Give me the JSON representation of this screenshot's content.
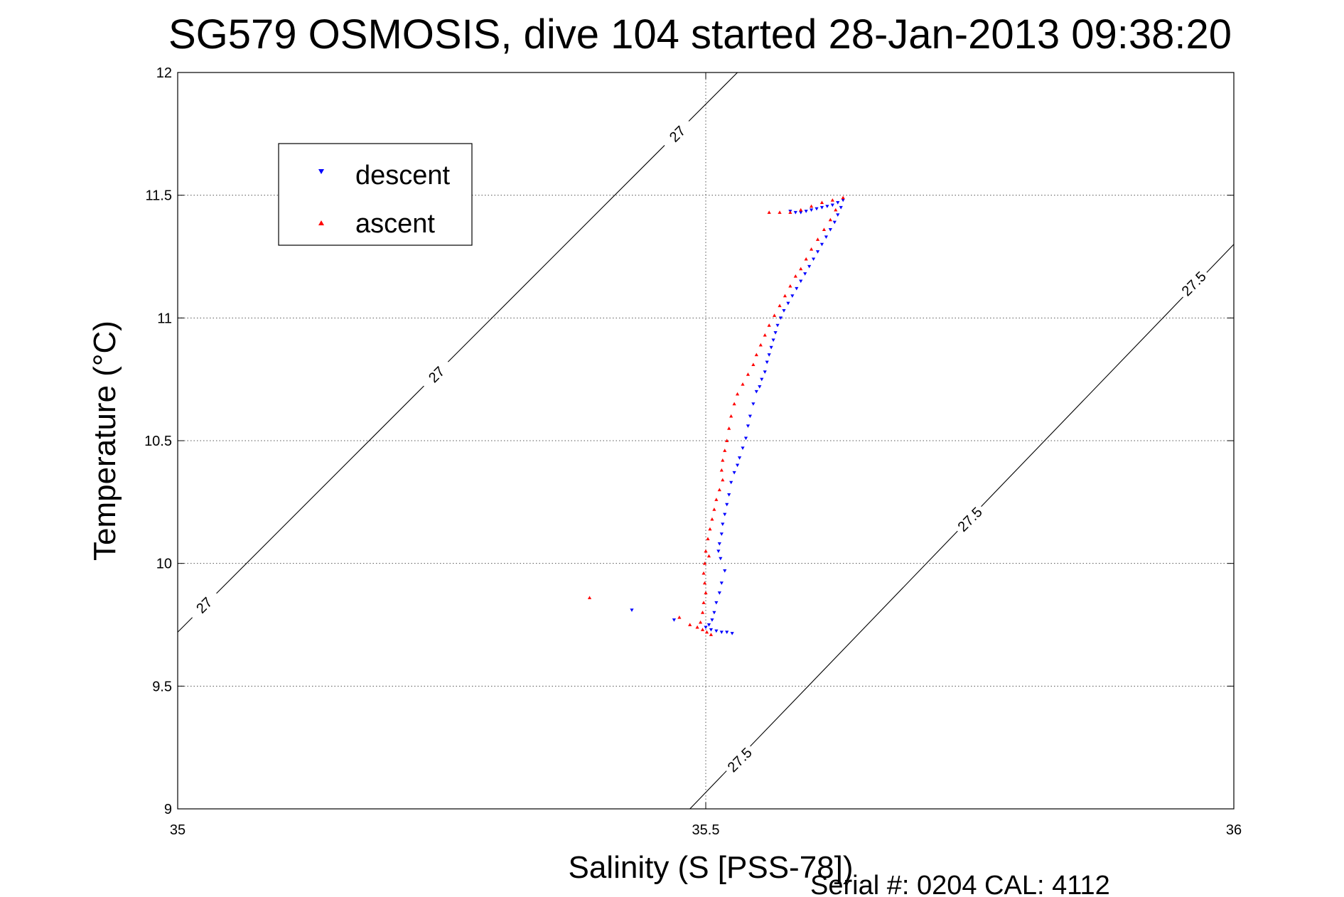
{
  "chart_data": {
    "type": "scatter",
    "title": "SG579 OSMOSIS, dive 104 started 28-Jan-2013 09:38:20",
    "xlabel": "Salinity (S [PSS-78])",
    "ylabel": "Temperature (°C)",
    "xlim": [
      35,
      36
    ],
    "ylim": [
      9,
      12
    ],
    "x_ticks": [
      35,
      35.5,
      36
    ],
    "y_ticks": [
      9,
      9.5,
      10,
      10.5,
      11,
      11.5,
      12
    ],
    "x_tick_labels": [
      "35",
      "35.5",
      "36"
    ],
    "y_tick_labels": [
      "9",
      "9.5",
      "10",
      "10.5",
      "11",
      "11.5",
      "12"
    ],
    "grid": true,
    "legend_position": "top-left",
    "footer_text": "Serial #: 0204  CAL: 4112",
    "series": [
      {
        "name": "descent",
        "color": "#0000ff",
        "marker": "triangle-down",
        "points": [
          [
            35.63,
            11.48
          ],
          [
            35.625,
            11.47
          ],
          [
            35.62,
            11.46
          ],
          [
            35.615,
            11.455
          ],
          [
            35.61,
            11.45
          ],
          [
            35.605,
            11.445
          ],
          [
            35.6,
            11.44
          ],
          [
            35.595,
            11.435
          ],
          [
            35.59,
            11.43
          ],
          [
            35.585,
            11.43
          ],
          [
            35.58,
            11.435
          ],
          [
            35.628,
            11.45
          ],
          [
            35.625,
            11.42
          ],
          [
            35.622,
            11.39
          ],
          [
            35.618,
            11.36
          ],
          [
            35.614,
            11.33
          ],
          [
            35.61,
            11.3
          ],
          [
            35.606,
            11.27
          ],
          [
            35.602,
            11.24
          ],
          [
            35.598,
            11.21
          ],
          [
            35.594,
            11.18
          ],
          [
            35.59,
            11.15
          ],
          [
            35.586,
            11.12
          ],
          [
            35.582,
            11.09
          ],
          [
            35.578,
            11.06
          ],
          [
            35.574,
            11.03
          ],
          [
            35.571,
            11.0
          ],
          [
            35.568,
            10.97
          ],
          [
            35.566,
            10.94
          ],
          [
            35.564,
            10.91
          ],
          [
            35.562,
            10.88
          ],
          [
            35.56,
            10.85
          ],
          [
            35.558,
            10.82
          ],
          [
            35.556,
            10.78
          ],
          [
            35.553,
            10.75
          ],
          [
            35.551,
            10.72
          ],
          [
            35.548,
            10.7
          ],
          [
            35.545,
            10.65
          ],
          [
            35.542,
            10.6
          ],
          [
            35.54,
            10.56
          ],
          [
            35.538,
            10.51
          ],
          [
            35.535,
            10.47
          ],
          [
            35.532,
            10.43
          ],
          [
            35.53,
            10.4
          ],
          [
            35.527,
            10.37
          ],
          [
            35.524,
            10.33
          ],
          [
            35.522,
            10.28
          ],
          [
            35.52,
            10.24
          ],
          [
            35.518,
            10.2
          ],
          [
            35.516,
            10.16
          ],
          [
            35.515,
            10.12
          ],
          [
            35.513,
            10.08
          ],
          [
            35.512,
            10.05
          ],
          [
            35.514,
            10.02
          ],
          [
            35.518,
            9.97
          ],
          [
            35.515,
            9.92
          ],
          [
            35.513,
            9.88
          ],
          [
            35.51,
            9.84
          ],
          [
            35.508,
            9.8
          ],
          [
            35.506,
            9.77
          ],
          [
            35.503,
            9.75
          ],
          [
            35.5,
            9.74
          ],
          [
            35.505,
            9.73
          ],
          [
            35.51,
            9.725
          ],
          [
            35.515,
            9.72
          ],
          [
            35.52,
            9.72
          ],
          [
            35.525,
            9.715
          ],
          [
            35.47,
            9.77
          ],
          [
            35.43,
            9.81
          ]
        ]
      },
      {
        "name": "ascent",
        "color": "#ff0000",
        "marker": "triangle-up",
        "points": [
          [
            35.63,
            11.49
          ],
          [
            35.62,
            11.48
          ],
          [
            35.61,
            11.47
          ],
          [
            35.6,
            11.455
          ],
          [
            35.59,
            11.44
          ],
          [
            35.58,
            11.43
          ],
          [
            35.57,
            11.43
          ],
          [
            35.56,
            11.43
          ],
          [
            35.623,
            11.44
          ],
          [
            35.618,
            11.4
          ],
          [
            35.612,
            11.36
          ],
          [
            35.606,
            11.32
          ],
          [
            35.6,
            11.28
          ],
          [
            35.595,
            11.24
          ],
          [
            35.59,
            11.2
          ],
          [
            35.585,
            11.17
          ],
          [
            35.58,
            11.13
          ],
          [
            35.575,
            11.09
          ],
          [
            35.57,
            11.05
          ],
          [
            35.565,
            11.01
          ],
          [
            35.56,
            10.97
          ],
          [
            35.556,
            10.93
          ],
          [
            35.552,
            10.89
          ],
          [
            35.548,
            10.85
          ],
          [
            35.545,
            10.81
          ],
          [
            35.54,
            10.77
          ],
          [
            35.535,
            10.73
          ],
          [
            35.53,
            10.69
          ],
          [
            35.527,
            10.65
          ],
          [
            35.524,
            10.6
          ],
          [
            35.522,
            10.55
          ],
          [
            35.52,
            10.5
          ],
          [
            35.518,
            10.46
          ],
          [
            35.516,
            10.42
          ],
          [
            35.515,
            10.38
          ],
          [
            35.516,
            10.34
          ],
          [
            35.513,
            10.3
          ],
          [
            35.51,
            10.26
          ],
          [
            35.508,
            10.22
          ],
          [
            35.506,
            10.18
          ],
          [
            35.504,
            10.14
          ],
          [
            35.502,
            10.1
          ],
          [
            35.5,
            10.05
          ],
          [
            35.503,
            10.03
          ],
          [
            35.499,
            10.0
          ],
          [
            35.498,
            9.96
          ],
          [
            35.499,
            9.92
          ],
          [
            35.5,
            9.88
          ],
          [
            35.498,
            9.84
          ],
          [
            35.497,
            9.8
          ],
          [
            35.495,
            9.76
          ],
          [
            35.492,
            9.74
          ],
          [
            35.497,
            9.73
          ],
          [
            35.501,
            9.72
          ],
          [
            35.505,
            9.71
          ],
          [
            35.485,
            9.75
          ],
          [
            35.475,
            9.78
          ],
          [
            35.39,
            9.86
          ]
        ]
      }
    ],
    "isopycnals": [
      {
        "label": "27",
        "s1": 35.0,
        "t1": 9.72,
        "s2": 35.53,
        "t2": 12.0
      },
      {
        "label": "27.5",
        "s1": 35.485,
        "t1": 9.0,
        "s2": 36.0,
        "t2": 11.3
      }
    ],
    "isopycnal_labels": [
      {
        "text": "27",
        "s": 35.473,
        "t": 11.75
      },
      {
        "text": "27",
        "s": 35.245,
        "t": 10.77
      },
      {
        "text": "27",
        "s": 35.025,
        "t": 9.83
      },
      {
        "text": "27.5",
        "s": 35.962,
        "t": 11.14
      },
      {
        "text": "27.5",
        "s": 35.75,
        "t": 10.18
      },
      {
        "text": "27.5",
        "s": 35.532,
        "t": 9.2
      }
    ]
  }
}
